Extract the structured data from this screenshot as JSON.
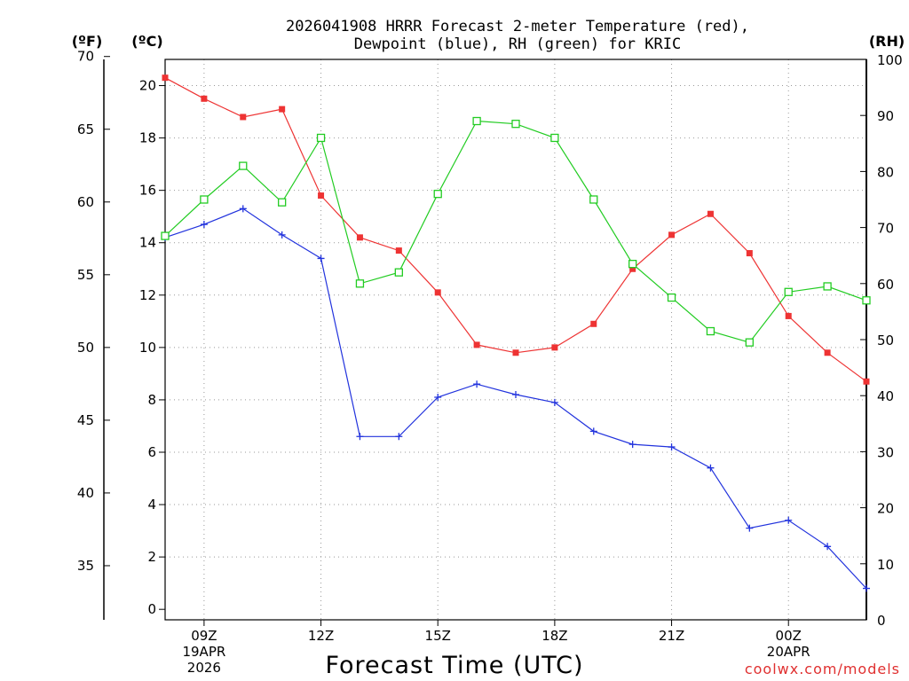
{
  "chart_data": {
    "type": "line",
    "title_line1": "2026041908 HRRR Forecast 2-meter Temperature (red),",
    "title_line2": "Dewpoint (blue), RH (green) for KRIC",
    "unit_f": "(ºF)",
    "unit_c": "(ºC)",
    "unit_rh": "(RH)",
    "xlabel": "Forecast Time (UTC)",
    "credit": "coolwx.com/models",
    "x_hours": [
      8,
      9,
      10,
      11,
      12,
      13,
      14,
      15,
      16,
      17,
      18,
      19,
      20,
      21,
      22,
      23,
      24,
      25,
      26
    ],
    "xlim": [
      8,
      26
    ],
    "x_ticks": [
      {
        "hour": 9,
        "lines": [
          "09Z",
          "19APR",
          "2026"
        ]
      },
      {
        "hour": 12,
        "lines": [
          "12Z"
        ]
      },
      {
        "hour": 15,
        "lines": [
          "15Z"
        ]
      },
      {
        "hour": 18,
        "lines": [
          "18Z"
        ]
      },
      {
        "hour": 21,
        "lines": [
          "21Z"
        ]
      },
      {
        "hour": 24,
        "lines": [
          "00Z",
          "20APR"
        ]
      }
    ],
    "c_axis": {
      "lim": [
        -0.4,
        21.0
      ],
      "ticks": [
        0,
        2,
        4,
        6,
        8,
        10,
        12,
        14,
        16,
        18,
        20
      ]
    },
    "f_axis": {
      "ticks": [
        35,
        40,
        45,
        50,
        55,
        60,
        65,
        70
      ]
    },
    "rh_axis": {
      "lim": [
        0,
        100
      ],
      "ticks": [
        0,
        10,
        20,
        30,
        40,
        50,
        60,
        70,
        80,
        90,
        100
      ]
    },
    "series": [
      {
        "name": "Temperature",
        "axis": "c",
        "color": "#ee3333",
        "marker": "filled-square",
        "values": [
          20.3,
          19.5,
          18.8,
          19.1,
          15.8,
          14.2,
          13.7,
          12.1,
          10.1,
          9.8,
          10.0,
          10.9,
          13.0,
          14.3,
          15.1,
          13.6,
          11.2,
          9.8,
          8.7
        ]
      },
      {
        "name": "Dewpoint",
        "axis": "c",
        "color": "#2233dd",
        "marker": "plus",
        "values": [
          14.2,
          14.7,
          15.3,
          14.3,
          13.4,
          6.6,
          6.6,
          8.1,
          8.6,
          8.2,
          7.9,
          6.8,
          6.3,
          6.2,
          5.4,
          3.1,
          3.4,
          2.4,
          0.8
        ]
      },
      {
        "name": "RH",
        "axis": "rh",
        "color": "#22cc22",
        "marker": "open-square",
        "values": [
          68.5,
          75.0,
          81.0,
          74.5,
          86.0,
          60.0,
          62.0,
          76.0,
          89.0,
          88.5,
          86.0,
          75.0,
          63.5,
          57.5,
          51.5,
          49.5,
          58.5,
          59.5,
          57.0
        ]
      }
    ]
  }
}
